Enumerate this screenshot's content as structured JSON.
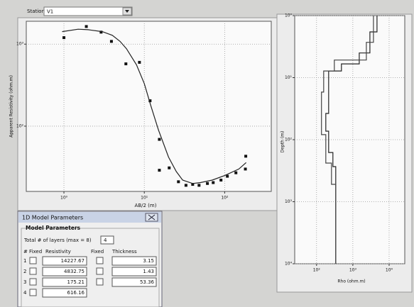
{
  "toolbar": {
    "station_label": "Station",
    "station_value": "V1"
  },
  "sounding_chart": {
    "type": "log-chart",
    "xlabel": "AB/2 (m)",
    "ylabel": "Apparent Resistivity (ohm.m)",
    "xscale": "log",
    "yscale": "log",
    "xlim": [
      0.34,
      380
    ],
    "ylim": [
      16,
      1900
    ],
    "xticks": [
      {
        "value": 1,
        "label": "10⁰"
      },
      {
        "value": 10,
        "label": "10¹"
      },
      {
        "value": 100,
        "label": "10²"
      }
    ],
    "yticks": [
      {
        "value": 100,
        "label": "10²"
      },
      {
        "value": 1000,
        "label": "10³"
      }
    ],
    "grid": true,
    "series": [
      {
        "style": "markers",
        "color": "#111111",
        "x": [
          1,
          1.9,
          2.9,
          3.9,
          5.9,
          8.7,
          11.8,
          15.4,
          15.4,
          20.4,
          26.6,
          33,
          40,
          48,
          61,
          72,
          90,
          108,
          138,
          181,
          183
        ],
        "values": [
          1200,
          1640,
          1400,
          1080,
          575,
          600,
          204,
          69,
          29,
          31,
          21,
          19,
          19.5,
          19,
          20,
          20.5,
          22,
          24.5,
          27,
          30,
          43
        ]
      },
      {
        "style": "line",
        "color": "#222222",
        "x": [
          0.95,
          1.5,
          2,
          3,
          4,
          5,
          6,
          8,
          10,
          12,
          15,
          20,
          25,
          30,
          40,
          50,
          70,
          100,
          150,
          185
        ],
        "values": [
          1420,
          1520,
          1500,
          1420,
          1280,
          1080,
          880,
          560,
          330,
          180,
          90,
          42,
          28,
          22,
          20,
          20.5,
          22,
          25,
          30,
          36
        ]
      }
    ]
  },
  "model_chart": {
    "type": "log-chart",
    "xlabel": "Rho (ohm.m)",
    "ylabel": "Depth (m)",
    "xscale": "log",
    "yscale": "log",
    "yreverse": true,
    "xlim": [
      25,
      27000
    ],
    "ylim": [
      1,
      10000
    ],
    "xticks": [
      {
        "value": 100,
        "label": "10²"
      },
      {
        "value": 1000,
        "label": "10³"
      },
      {
        "value": 10000,
        "label": "10⁴"
      }
    ],
    "yticks": [
      {
        "value": 1,
        "label": "10⁰"
      },
      {
        "value": 10,
        "label": "10¹"
      },
      {
        "value": 100,
        "label": "10²"
      },
      {
        "value": 1000,
        "label": "10³"
      },
      {
        "value": 10000,
        "label": "10⁴"
      }
    ],
    "grid": true,
    "series": [
      {
        "style": "line",
        "color": "#222222",
        "x": [
          4640,
          4640,
          2950,
          2950,
          1500,
          1500,
          485,
          485,
          215,
          215,
          180,
          180,
          215,
          215,
          283,
          283,
          338,
          338
        ],
        "values": [
          1,
          1.83,
          1.83,
          4.0,
          4.0,
          6.0,
          6.0,
          7.8,
          7.8,
          37.8,
          37.8,
          73,
          73,
          161,
          161,
          272,
          272,
          10000
        ]
      },
      {
        "style": "line",
        "color": "#444444",
        "x": [
          3700,
          3700,
          2360,
          2360,
          309,
          309,
          157,
          157,
          137,
          137,
          180,
          180,
          258,
          258,
          338,
          338
        ],
        "values": [
          1,
          2.7,
          2.7,
          5.2,
          5.2,
          7.8,
          7.8,
          17.1,
          17.1,
          83,
          83,
          238,
          238,
          525,
          525,
          10000
        ]
      }
    ]
  },
  "dialog": {
    "title": "1D Model Parameters",
    "group": "Model Parameters",
    "layers_label": "Total # of layers (max = 8)",
    "layers_value": "4",
    "headers": [
      "#",
      "Fixed",
      "Resistivity",
      "Fixed",
      "Thickness"
    ],
    "rows": [
      {
        "index": "1",
        "resistivity": "14227.67",
        "thickness": "3.15"
      },
      {
        "index": "2",
        "resistivity": "4832.75",
        "thickness": "1.43"
      },
      {
        "index": "3",
        "resistivity": "175.21",
        "thickness": "53.36"
      },
      {
        "index": "4",
        "resistivity": "616.16"
      }
    ]
  }
}
